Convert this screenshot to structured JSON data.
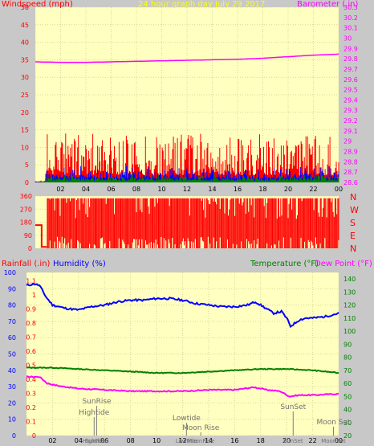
{
  "chart_data": [
    {
      "type": "line",
      "title": "24 hour graph day  July 29 2017",
      "left_axis_label": "Windspeed (mph)",
      "right_axis_label": "Barometer ( in)",
      "x_tick_labels": [
        "02",
        "04",
        "06",
        "08",
        "10",
        "12",
        "14",
        "16",
        "18",
        "20",
        "22",
        "00"
      ],
      "left_ticks": [
        "0",
        "5",
        "10",
        "15",
        "20",
        "25",
        "30",
        "35",
        "40",
        "45",
        "50"
      ],
      "right_ticks": [
        "28.6",
        "28.7",
        "28.8",
        "28.9",
        "29",
        "29.1",
        "29.2",
        "29.3",
        "29.4",
        "29.5",
        "29.6",
        "29.7",
        "29.8",
        "29.9",
        "30",
        "30.1",
        "30.2",
        "30.3"
      ],
      "ylim_left": [
        0,
        50
      ],
      "ylim_right": [
        28.6,
        30.3
      ],
      "series": [
        {
          "name": "gust",
          "color": "#ff0000",
          "noise_range": [
            2,
            14
          ]
        },
        {
          "name": "wind",
          "color": "#0000ff",
          "noise_range": [
            1,
            5
          ]
        },
        {
          "name": "average",
          "color": "#008000",
          "noise_range": [
            0.5,
            2.5
          ]
        },
        {
          "name": "barometer",
          "color": "#ff00ff",
          "hours": [
            0,
            2,
            4,
            6,
            8,
            10,
            12,
            14,
            16,
            18,
            20,
            22,
            24
          ],
          "values": [
            29.77,
            29.765,
            29.765,
            29.77,
            29.775,
            29.78,
            29.785,
            29.79,
            29.795,
            29.805,
            29.82,
            29.835,
            29.845
          ]
        }
      ]
    },
    {
      "type": "line",
      "right_axis_labels": [
        "N",
        "W",
        "S",
        "E",
        "N"
      ],
      "left_ticks": [
        "0",
        "90",
        "180",
        "270",
        "360"
      ],
      "ylim": [
        0,
        360
      ],
      "series": [
        {
          "name": "wind direction",
          "color": "#ff0000"
        }
      ]
    },
    {
      "type": "line",
      "left_axis_label": "Rainfall (.in)",
      "humidity_axis_label": "Humidity (%)",
      "right_axis_label": "Temperature (°F)",
      "dewpoint_label": "Dew Point (°F)",
      "humidity_ticks": [
        "0",
        "10",
        "20",
        "30",
        "40",
        "50",
        "60",
        "70",
        "80",
        "90",
        "100"
      ],
      "rain_ticks": [
        "0",
        "0.1",
        "0.2",
        "0.3",
        "0.4",
        "0.5",
        "0.6",
        "0.7",
        "0.8",
        "0.9",
        "1",
        "1.1"
      ],
      "temp_ticks": [
        "20",
        "30",
        "40",
        "50",
        "60",
        "70",
        "80",
        "90",
        "100",
        "110",
        "120",
        "130",
        "140"
      ],
      "x_tick_labels": [
        "02",
        "04",
        "06",
        "08",
        "10",
        "12",
        "14",
        "16",
        "18",
        "20",
        "22",
        "00"
      ],
      "ylim_humidity": [
        0,
        100
      ],
      "ylim_temp": [
        20,
        145
      ],
      "series": [
        {
          "name": "humidity",
          "color": "#0000ff",
          "hours": [
            0,
            0.6,
            1.0,
            1.5,
            2.0,
            3.0,
            4.0,
            5.0,
            6.0,
            7.0,
            8.0,
            9.0,
            10.0,
            11.0,
            12.0,
            13.0,
            14.0,
            15.0,
            16.0,
            17.0,
            17.6,
            18.2,
            19.0,
            19.6,
            20.0,
            20.3,
            21.0,
            21.5,
            22.0,
            23.0,
            24.0
          ],
          "values": [
            92,
            93,
            92,
            85,
            80,
            78,
            77,
            79,
            80,
            82,
            83,
            83,
            84,
            84,
            83,
            81,
            80,
            79,
            79,
            80,
            82,
            79,
            75,
            76,
            72,
            67,
            71,
            72,
            72,
            73,
            75
          ]
        },
        {
          "name": "temperature",
          "color": "#008000",
          "hours": [
            0,
            2,
            4,
            6,
            8,
            10,
            12,
            14,
            16,
            18,
            20,
            22,
            24
          ],
          "values": [
            72,
            72,
            71,
            70,
            69,
            68,
            68,
            69,
            70,
            71,
            71,
            70,
            68
          ]
        },
        {
          "name": "dew point",
          "color": "#ff00ff",
          "hours": [
            0,
            1,
            1.6,
            2.5,
            4,
            6,
            8,
            10,
            12,
            14,
            16,
            17.5,
            18.5,
            19.5,
            20.2,
            21,
            22,
            24
          ],
          "values": [
            65,
            65,
            60,
            58,
            56,
            55,
            54,
            54,
            54,
            55,
            55,
            57,
            55,
            54,
            50,
            51,
            51,
            52
          ]
        }
      ],
      "events": [
        {
          "label": "SunRise",
          "hour": 5.4,
          "tick_label": "SunRise"
        },
        {
          "label": "Hightide",
          "hour": 5.2,
          "tick_label": "Hightide"
        },
        {
          "label": "Lowtide",
          "hour": 12.3,
          "tick_label": "Lowtide"
        },
        {
          "label": "Moon Rise",
          "hour": 13.4,
          "tick_label": "MoonRise"
        },
        {
          "label": "SunSet",
          "hour": 20.5,
          "tick_label": "SunSet"
        },
        {
          "label": "Moon Set",
          "hour": 23.6,
          "tick_label": "MoonSet"
        }
      ]
    }
  ]
}
